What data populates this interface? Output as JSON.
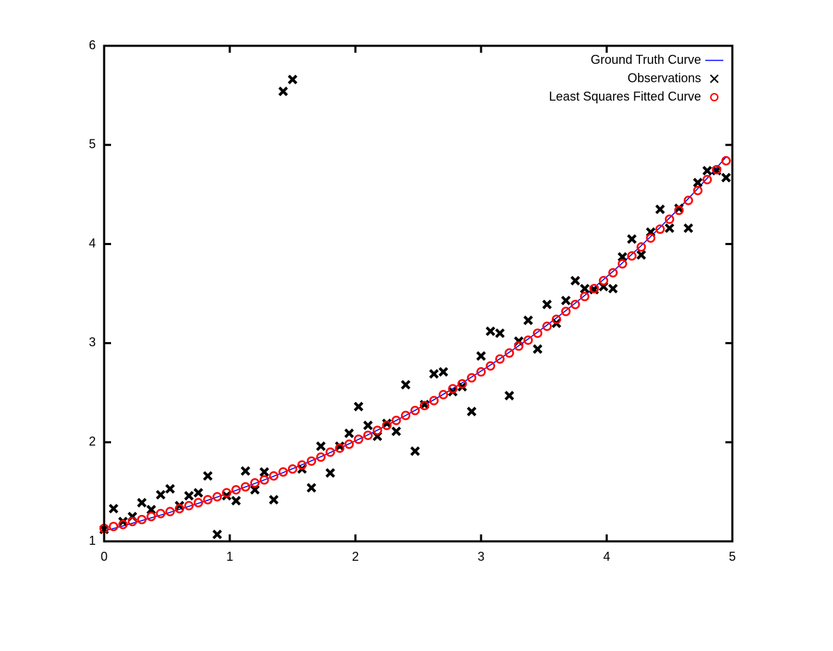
{
  "chart_data": {
    "type": "line",
    "x": [
      0,
      0.075,
      0.15,
      0.225,
      0.3,
      0.375,
      0.45,
      0.525,
      0.6,
      0.675,
      0.75,
      0.825,
      0.9,
      0.975,
      1.05,
      1.125,
      1.2,
      1.275,
      1.35,
      1.425,
      1.5,
      1.575,
      1.65,
      1.725,
      1.8,
      1.875,
      1.95,
      2.025,
      2.1,
      2.175,
      2.25,
      2.325,
      2.4,
      2.475,
      2.55,
      2.625,
      2.7,
      2.775,
      2.85,
      2.925,
      3,
      3.075,
      3.15,
      3.225,
      3.3,
      3.375,
      3.45,
      3.525,
      3.6,
      3.675,
      3.75,
      3.825,
      3.9,
      3.975,
      4.05,
      4.125,
      4.2,
      4.275,
      4.35,
      4.425,
      4.5,
      4.575,
      4.65,
      4.725,
      4.8,
      4.875,
      4.95
    ],
    "series": [
      {
        "name": "Ground Truth Curve",
        "color": "#0000ff",
        "style": "line",
        "values": [
          1.105,
          1.13,
          1.156,
          1.182,
          1.209,
          1.237,
          1.265,
          1.293,
          1.323,
          1.353,
          1.384,
          1.415,
          1.447,
          1.48,
          1.514,
          1.549,
          1.584,
          1.62,
          1.657,
          1.694,
          1.733,
          1.773,
          1.813,
          1.854,
          1.896,
          1.94,
          1.984,
          2.029,
          2.075,
          2.122,
          2.171,
          2.22,
          2.27,
          2.322,
          2.375,
          2.429,
          2.484,
          2.541,
          2.599,
          2.658,
          2.718,
          2.78,
          2.843,
          2.908,
          2.974,
          3.042,
          3.111,
          3.182,
          3.254,
          3.328,
          3.404,
          3.481,
          3.561,
          3.642,
          3.724,
          3.809,
          3.896,
          3.984,
          4.075,
          4.168,
          4.263,
          4.36,
          4.459,
          4.56,
          4.664,
          4.77,
          4.878
        ]
      },
      {
        "name": "Observations",
        "color": "#000000",
        "style": "cross",
        "values": [
          1.12,
          1.33,
          1.2,
          1.25,
          1.39,
          1.32,
          1.47,
          1.53,
          1.36,
          1.46,
          1.49,
          1.66,
          1.07,
          1.46,
          1.41,
          1.71,
          1.52,
          1.7,
          1.42,
          5.54,
          5.66,
          1.73,
          1.54,
          1.96,
          1.69,
          1.96,
          2.09,
          2.36,
          2.17,
          2.06,
          2.19,
          2.11,
          2.58,
          1.91,
          2.38,
          2.69,
          2.71,
          2.51,
          2.56,
          2.31,
          2.87,
          3.12,
          3.1,
          2.47,
          3.02,
          3.23,
          2.94,
          3.39,
          3.2,
          3.43,
          3.63,
          3.55,
          3.54,
          3.57,
          3.55,
          3.87,
          4.05,
          3.89,
          4.12,
          4.35,
          4.16,
          4.36,
          4.16,
          4.62,
          4.74,
          4.74,
          4.67
        ]
      },
      {
        "name": "Least Squares Fitted Curve",
        "color": "#ff0000",
        "style": "circle",
        "values": [
          1.13,
          1.15,
          1.17,
          1.2,
          1.22,
          1.25,
          1.28,
          1.3,
          1.33,
          1.36,
          1.39,
          1.42,
          1.45,
          1.49,
          1.52,
          1.55,
          1.59,
          1.62,
          1.66,
          1.7,
          1.73,
          1.77,
          1.81,
          1.85,
          1.9,
          1.94,
          1.98,
          2.03,
          2.07,
          2.12,
          2.17,
          2.22,
          2.27,
          2.32,
          2.37,
          2.42,
          2.48,
          2.54,
          2.59,
          2.65,
          2.71,
          2.77,
          2.84,
          2.9,
          2.97,
          3.03,
          3.1,
          3.17,
          3.24,
          3.32,
          3.39,
          3.47,
          3.55,
          3.63,
          3.71,
          3.8,
          3.88,
          3.97,
          4.06,
          4.15,
          4.25,
          4.34,
          4.44,
          4.54,
          4.65,
          4.75,
          4.84
        ]
      }
    ],
    "xlim": [
      0,
      5
    ],
    "xticks": [
      0,
      1,
      2,
      3,
      4,
      5
    ],
    "ylim": [
      1,
      6
    ],
    "yticks": [
      1,
      2,
      3,
      4,
      5,
      6
    ],
    "legend": "top-right"
  }
}
